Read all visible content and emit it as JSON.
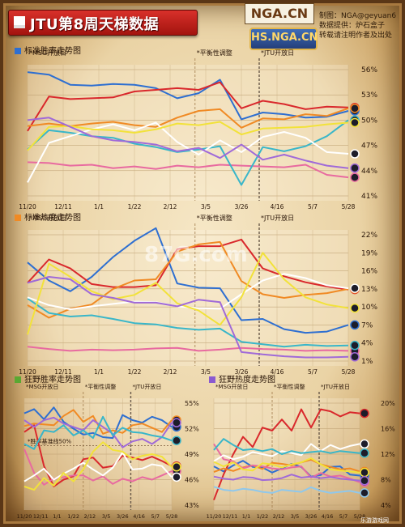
{
  "header": {
    "title": "JTU第8周天梯数据",
    "logo_text": "NGA.CN",
    "seal_text": "HS.NGA.CN",
    "credits": [
      "制图：NGA@geyuan6",
      "数据提供：炉石盒子",
      "转载请注明作者及出处"
    ]
  },
  "watermark": "87G.com",
  "footer_text": "乐游游戏网",
  "colors": {
    "blue": "#2e6fd1",
    "red": "#d9282c",
    "orange": "#f08a24",
    "pink": "#e86aa0",
    "teal": "#39b6c9",
    "white": "#ffffff",
    "yellow": "#f2e23a",
    "purple": "#a06ad8",
    "grey": "#8c8c8c",
    "lightblue": "#8fc8ec"
  },
  "chart_data": [
    {
      "type": "line",
      "title": "标准胜率走势图",
      "title_square_color": "#2e6fd1",
      "x_ticks": [
        "11/20",
        "12/11",
        "1/1",
        "1/22",
        "2/12",
        "3/5",
        "3/26",
        "4/16",
        "5/7",
        "5/28"
      ],
      "y_ticks": [
        "56%",
        "53%",
        "50%",
        "47%",
        "44%",
        "41%"
      ],
      "ylim": [
        41,
        56
      ],
      "annotations": [
        {
          "text": "*MSG开放日",
          "x": 0
        },
        {
          "text": "*平衡性调整",
          "x": 4.7
        },
        {
          "text": "*JTU开放日",
          "x": 6.5
        }
      ],
      "series": [
        {
          "color": "#2e6fd1",
          "values": [
            55.7,
            55.4,
            54.2,
            54.1,
            54.3,
            54.2,
            53.8,
            52.6,
            53.2,
            54.8,
            50.1,
            50.9,
            50.7,
            50.3,
            50.4,
            51.1
          ]
        },
        {
          "color": "#d9282c",
          "values": [
            48.7,
            52.8,
            52.5,
            52.6,
            52.7,
            53.4,
            53.6,
            53.8,
            53.6,
            54.5,
            51.4,
            52.3,
            51.9,
            51.3,
            51.6,
            51.5
          ]
        },
        {
          "color": "#f08a24",
          "values": [
            49.3,
            49.6,
            49.3,
            49.6,
            49.8,
            49.4,
            49.2,
            50.3,
            51.1,
            51.3,
            49.1,
            50.2,
            50.1,
            50.7,
            50.5,
            51.4
          ]
        },
        {
          "color": "#e86aa0",
          "values": [
            45.0,
            44.9,
            44.6,
            44.7,
            44.3,
            44.5,
            44.2,
            44.6,
            44.4,
            44.7,
            44.6,
            44.5,
            44.4,
            44.7,
            43.5,
            43.2
          ]
        },
        {
          "color": "#39b6c9",
          "values": [
            46.5,
            48.8,
            48.5,
            48.1,
            47.9,
            47.2,
            46.8,
            46.2,
            46.5,
            46.9,
            42.3,
            46.8,
            46.3,
            46.9,
            48.1,
            50.0
          ]
        },
        {
          "color": "#ffffff",
          "values": [
            42.6,
            47.3,
            48.1,
            48.9,
            49.5,
            48.8,
            49.7,
            47.4,
            45.9,
            47.6,
            46.2,
            48.0,
            48.6,
            47.9,
            46.2,
            46.0
          ]
        },
        {
          "color": "#f2e23a",
          "values": [
            46.4,
            49.2,
            49.3,
            48.9,
            48.8,
            48.5,
            48.9,
            49.6,
            49.4,
            49.8,
            48.3,
            49.0,
            49.1,
            49.2,
            49.5,
            49.7
          ]
        },
        {
          "color": "#a06ad8",
          "values": [
            50.0,
            50.3,
            49.2,
            48.1,
            47.6,
            47.4,
            47.1,
            46.3,
            46.7,
            45.5,
            47.1,
            45.3,
            45.9,
            45.2,
            44.6,
            44.3
          ]
        }
      ]
    },
    {
      "type": "line",
      "title": "标准热度走势图",
      "title_square_color": "#f08a24",
      "x_ticks": [
        "11/20",
        "12/11",
        "1/1",
        "1/22",
        "2/12",
        "3/5",
        "3/26",
        "4/16",
        "5/7",
        "5/28"
      ],
      "y_ticks": [
        "22%",
        "19%",
        "16%",
        "13%",
        "10%",
        "7%",
        "4%",
        "1%"
      ],
      "ylim": [
        1,
        22
      ],
      "annotations": [
        {
          "text": "*MSG开放日",
          "x": 0
        },
        {
          "text": "*平衡性调整",
          "x": 4.7
        },
        {
          "text": "*JTU开放日",
          "x": 6.5
        }
      ],
      "series": [
        {
          "color": "#2e6fd1",
          "values": [
            17.4,
            14.4,
            12.6,
            15.0,
            18.3,
            21.0,
            23.1,
            13.9,
            13.2,
            13.1,
            7.8,
            8.0,
            6.3,
            5.7,
            5.9,
            7.0
          ]
        },
        {
          "color": "#d9282c",
          "values": [
            14.0,
            17.9,
            16.4,
            13.8,
            13.3,
            13.3,
            13.6,
            19.6,
            20.1,
            20.1,
            21.2,
            16.4,
            15.1,
            14.1,
            13.4,
            12.9
          ]
        },
        {
          "color": "#f08a24",
          "values": [
            10.3,
            8.2,
            9.7,
            10.4,
            13.0,
            14.4,
            14.6,
            19.2,
            20.4,
            20.8,
            14.3,
            12.1,
            11.5,
            12.0,
            12.3,
            13.0
          ]
        },
        {
          "color": "#e86aa0",
          "values": [
            3.4,
            3.0,
            2.7,
            2.9,
            2.8,
            2.9,
            3.1,
            3.2,
            2.7,
            2.9,
            3.2,
            3.0,
            2.9,
            2.7,
            2.8,
            2.7
          ]
        },
        {
          "color": "#39b6c9",
          "values": [
            11.4,
            9.0,
            8.4,
            8.6,
            8.0,
            7.3,
            7.1,
            6.5,
            6.2,
            6.4,
            4.2,
            3.8,
            3.4,
            3.7,
            3.5,
            3.6
          ]
        },
        {
          "color": "#ffffff",
          "values": [
            11.6,
            10.3,
            9.6,
            10.1,
            10.5,
            10.9,
            10.8,
            10.1,
            9.8,
            9.7,
            12.1,
            14.4,
            15.5,
            14.8,
            13.6,
            13.1
          ]
        },
        {
          "color": "#f2e23a",
          "values": [
            5.4,
            17.2,
            15.0,
            12.6,
            11.3,
            12.0,
            14.0,
            10.6,
            9.4,
            7.0,
            11.6,
            19.0,
            14.6,
            11.6,
            10.4,
            9.8
          ]
        },
        {
          "color": "#a06ad8",
          "values": [
            14.0,
            15.0,
            14.6,
            12.1,
            11.5,
            10.7,
            10.7,
            10.1,
            11.2,
            10.8,
            2.5,
            2.1,
            1.8,
            1.6,
            1.6,
            1.7
          ]
        }
      ]
    },
    {
      "type": "line",
      "title": "狂野胜率走势图",
      "title_square_color": "#5aa832",
      "x_ticks": [
        "11/20",
        "12/11",
        "1/1",
        "1/22",
        "2/12",
        "3/5",
        "3/26",
        "4/16",
        "5/7",
        "5/28"
      ],
      "y_ticks": [
        "55%",
        "52%",
        "49%",
        "46%",
        "43%"
      ],
      "ylim": [
        43,
        55
      ],
      "annotations": [
        {
          "text": "*MSG开放日",
          "x": 0
        },
        {
          "text": "*平衡性调整",
          "x": 3.6
        },
        {
          "text": "*JTU开放日",
          "x": 6.5
        }
      ],
      "inline_label": "*胜率基准线50%",
      "series": [
        {
          "color": "#2e6fd1",
          "values": [
            53.8,
            54.3,
            53.1,
            54.5,
            52.8,
            52.0,
            51.3,
            51.5,
            51.0,
            50.9,
            53.6,
            53.0,
            52.7,
            53.4,
            53.0,
            52.2
          ]
        },
        {
          "color": "#d9282c",
          "values": [
            51.6,
            52.4,
            47.6,
            45.2,
            46.0,
            46.4,
            48.4,
            48.6,
            47.4,
            47.6,
            48.8,
            48.6,
            48.3,
            48.7,
            48.2,
            47.6
          ]
        },
        {
          "color": "#f08a24",
          "values": [
            52.3,
            52.6,
            52.5,
            52.4,
            53.5,
            54.2,
            52.8,
            53.5,
            51.4,
            51.8,
            51.5,
            52.4,
            52.6,
            52.1,
            51.6,
            53.0
          ]
        },
        {
          "color": "#e86aa0",
          "values": [
            49.6,
            46.8,
            45.4,
            46.1,
            46.3,
            46.5,
            46.5,
            45.9,
            46.4,
            45.5,
            46.1,
            45.8,
            46.3,
            46.0,
            46.5,
            47.0
          ]
        },
        {
          "color": "#ffffff",
          "values": [
            45.8,
            46.5,
            47.3,
            46.0,
            46.7,
            47.3,
            48.0,
            47.2,
            46.5,
            47.4,
            49.2,
            47.2,
            47.3,
            47.8,
            47.6,
            46.3
          ]
        },
        {
          "color": "#f2e23a",
          "values": [
            45.2,
            44.8,
            46.2,
            45.3,
            46.8,
            45.8,
            47.2,
            49.3,
            50.4,
            49.5,
            49.3,
            48.4,
            48.8,
            49.0,
            48.7,
            47.5
          ]
        },
        {
          "color": "#a06ad8",
          "values": [
            53.0,
            52.2,
            53.0,
            53.3,
            52.6,
            52.2,
            51.8,
            53.0,
            52.2,
            51.4,
            49.8,
            50.5,
            50.8,
            50.2,
            51.0,
            52.7
          ]
        },
        {
          "color": "#39b6c9",
          "values": [
            50.2,
            49.6,
            51.8,
            51.6,
            52.4,
            51.2,
            51.8,
            50.9,
            53.4,
            51.2,
            52.1,
            51.6,
            51.5,
            51.2,
            51.0,
            50.6
          ]
        }
      ]
    },
    {
      "type": "line",
      "title": "狂野热度走势图",
      "title_square_color": "#8a5ad0",
      "x_ticks": [
        "11/20",
        "12/11",
        "1/1",
        "1/22",
        "2/12",
        "3/5",
        "3/26",
        "4/16",
        "5/7",
        "5/28"
      ],
      "y_ticks": [
        "20%",
        "16%",
        "12%",
        "8%",
        "4%"
      ],
      "ylim": [
        2,
        22
      ],
      "annotations": [
        {
          "text": "*MSG开放日",
          "x": 0
        },
        {
          "text": "*平衡性调整",
          "x": 3.6
        },
        {
          "text": "*JTU开放日",
          "x": 6.5
        }
      ],
      "series": [
        {
          "color": "#2e6fd1",
          "values": [
            9.6,
            8.6,
            9.8,
            10.7,
            9.5,
            9.4,
            8.4,
            9.2,
            10.1,
            9.5,
            7.6,
            7.9,
            9.5,
            9.6,
            8.0,
            7.8
          ]
        },
        {
          "color": "#d9282c",
          "values": [
            3.0,
            8.0,
            12.0,
            15.4,
            13.4,
            17.2,
            16.6,
            18.8,
            16.6,
            20.8,
            17.2,
            20.8,
            20.4,
            19.4,
            20.2,
            20.0
          ]
        },
        {
          "color": "#f08a24",
          "values": [
            8.5,
            9.2,
            8.7,
            9.4,
            9.8,
            9.1,
            10.3,
            10.1,
            9.8,
            10.4,
            10.9,
            10.0,
            9.5,
            9.0,
            9.2,
            8.6
          ]
        },
        {
          "color": "#e86aa0",
          "values": [
            14.0,
            11.0,
            10.6,
            9.2,
            9.8,
            9.6,
            9.2,
            9.0,
            9.4,
            9.6,
            7.4,
            8.3,
            7.6,
            7.8,
            7.2,
            6.5
          ]
        },
        {
          "color": "#ffffff",
          "values": [
            10.6,
            11.8,
            11.0,
            11.5,
            12.4,
            12.0,
            11.6,
            12.6,
            12.2,
            11.8,
            14.0,
            12.6,
            13.8,
            13.0,
            13.6,
            14.0
          ]
        },
        {
          "color": "#f2e23a",
          "values": [
            10.5,
            9.6,
            10.4,
            9.0,
            8.8,
            10.2,
            10.0,
            9.4,
            10.0,
            10.4,
            11.2,
            10.0,
            9.0,
            8.8,
            8.6,
            8.4
          ]
        },
        {
          "color": "#a06ad8",
          "values": [
            7.6,
            7.2,
            7.0,
            7.5,
            7.4,
            6.9,
            7.0,
            7.3,
            8.0,
            7.4,
            7.6,
            7.3,
            7.5,
            7.2,
            7.0,
            6.8
          ]
        },
        {
          "color": "#39b6c9",
          "values": [
            12.8,
            15.0,
            13.8,
            12.8,
            13.0,
            12.6,
            13.0,
            12.0,
            12.6,
            12.2,
            12.4,
            12.6,
            12.2,
            12.6,
            12.4,
            12.2
          ]
        },
        {
          "color": "#8fc8ec",
          "values": [
            5.6,
            5.0,
            4.8,
            5.2,
            5.0,
            4.6,
            4.4,
            5.0,
            4.8,
            4.6,
            5.5,
            4.8,
            4.4,
            4.6,
            4.8,
            4.4
          ]
        }
      ]
    }
  ]
}
